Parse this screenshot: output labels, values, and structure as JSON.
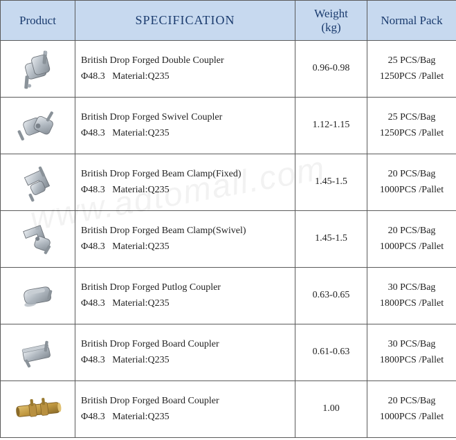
{
  "table": {
    "header_bg": "#c7d9ef",
    "header_color": "#1a3b6e",
    "border_color": "#5a5a5a",
    "columns": {
      "product": "Product",
      "spec": "SPECIFICATION",
      "weight": "Weight\n(kg)",
      "weight_line1": "Weight",
      "weight_line2": "(kg)",
      "pack": "Normal Pack"
    },
    "rows": [
      {
        "name": "British Drop Forged Double Coupler",
        "diameter": "Φ48.3",
        "material_label": "Material:",
        "material": "Q235",
        "weight": "0.96-0.98",
        "pack_line1": "25 PCS/Bag",
        "pack_line2": "1250PCS /Pallet",
        "icon": "double-coupler"
      },
      {
        "name": "British Drop Forged Swivel Coupler",
        "diameter": "Φ48.3",
        "material_label": "Material:",
        "material": "Q235",
        "weight": "1.12-1.15",
        "pack_line1": "25 PCS/Bag",
        "pack_line2": "1250PCS /Pallet",
        "icon": "swivel-coupler"
      },
      {
        "name": "British Drop Forged Beam Clamp(Fixed)",
        "diameter": "Φ48.3",
        "material_label": "Material:",
        "material": "Q235",
        "weight": "1.45-1.5",
        "pack_line1": "20 PCS/Bag",
        "pack_line2": "1000PCS /Pallet",
        "icon": "beam-clamp-fixed"
      },
      {
        "name": "British Drop Forged Beam Clamp(Swivel)",
        "diameter": "Φ48.3",
        "material_label": "Material:",
        "material": "Q235",
        "weight": "1.45-1.5",
        "pack_line1": "20 PCS/Bag",
        "pack_line2": "1000PCS /Pallet",
        "icon": "beam-clamp-swivel"
      },
      {
        "name": "British Drop Forged Putlog Coupler",
        "diameter": "Φ48.3",
        "material_label": "Material:",
        "material": "Q235",
        "weight": "0.63-0.65",
        "pack_line1": "30 PCS/Bag",
        "pack_line2": "1800PCS /Pallet",
        "icon": "putlog-coupler"
      },
      {
        "name": "British Drop Forged  Board  Coupler",
        "diameter": "Φ48.3",
        "material_label": "Material:",
        "material": "Q235",
        "weight": "0.61-0.63",
        "pack_line1": "30 PCS/Bag",
        "pack_line2": "1800PCS /Pallet",
        "icon": "board-coupler"
      },
      {
        "name": "British Drop Forged  Board  Coupler",
        "diameter": "Φ48.3",
        "material_label": "Material:",
        "material": "Q235",
        "weight": "1.00",
        "pack_line1": "20 PCS/Bag",
        "pack_line2": "1000PCS /Pallet",
        "icon": "sleeve-coupler"
      }
    ]
  },
  "icon_colors": {
    "metal_light": "#d8dde2",
    "metal_mid": "#a8b0b8",
    "metal_dark": "#7a828a",
    "bolt": "#8a9299",
    "brass": "#c9a24a",
    "brass_dark": "#9a7a30"
  },
  "watermark": "www.adtomall.com"
}
